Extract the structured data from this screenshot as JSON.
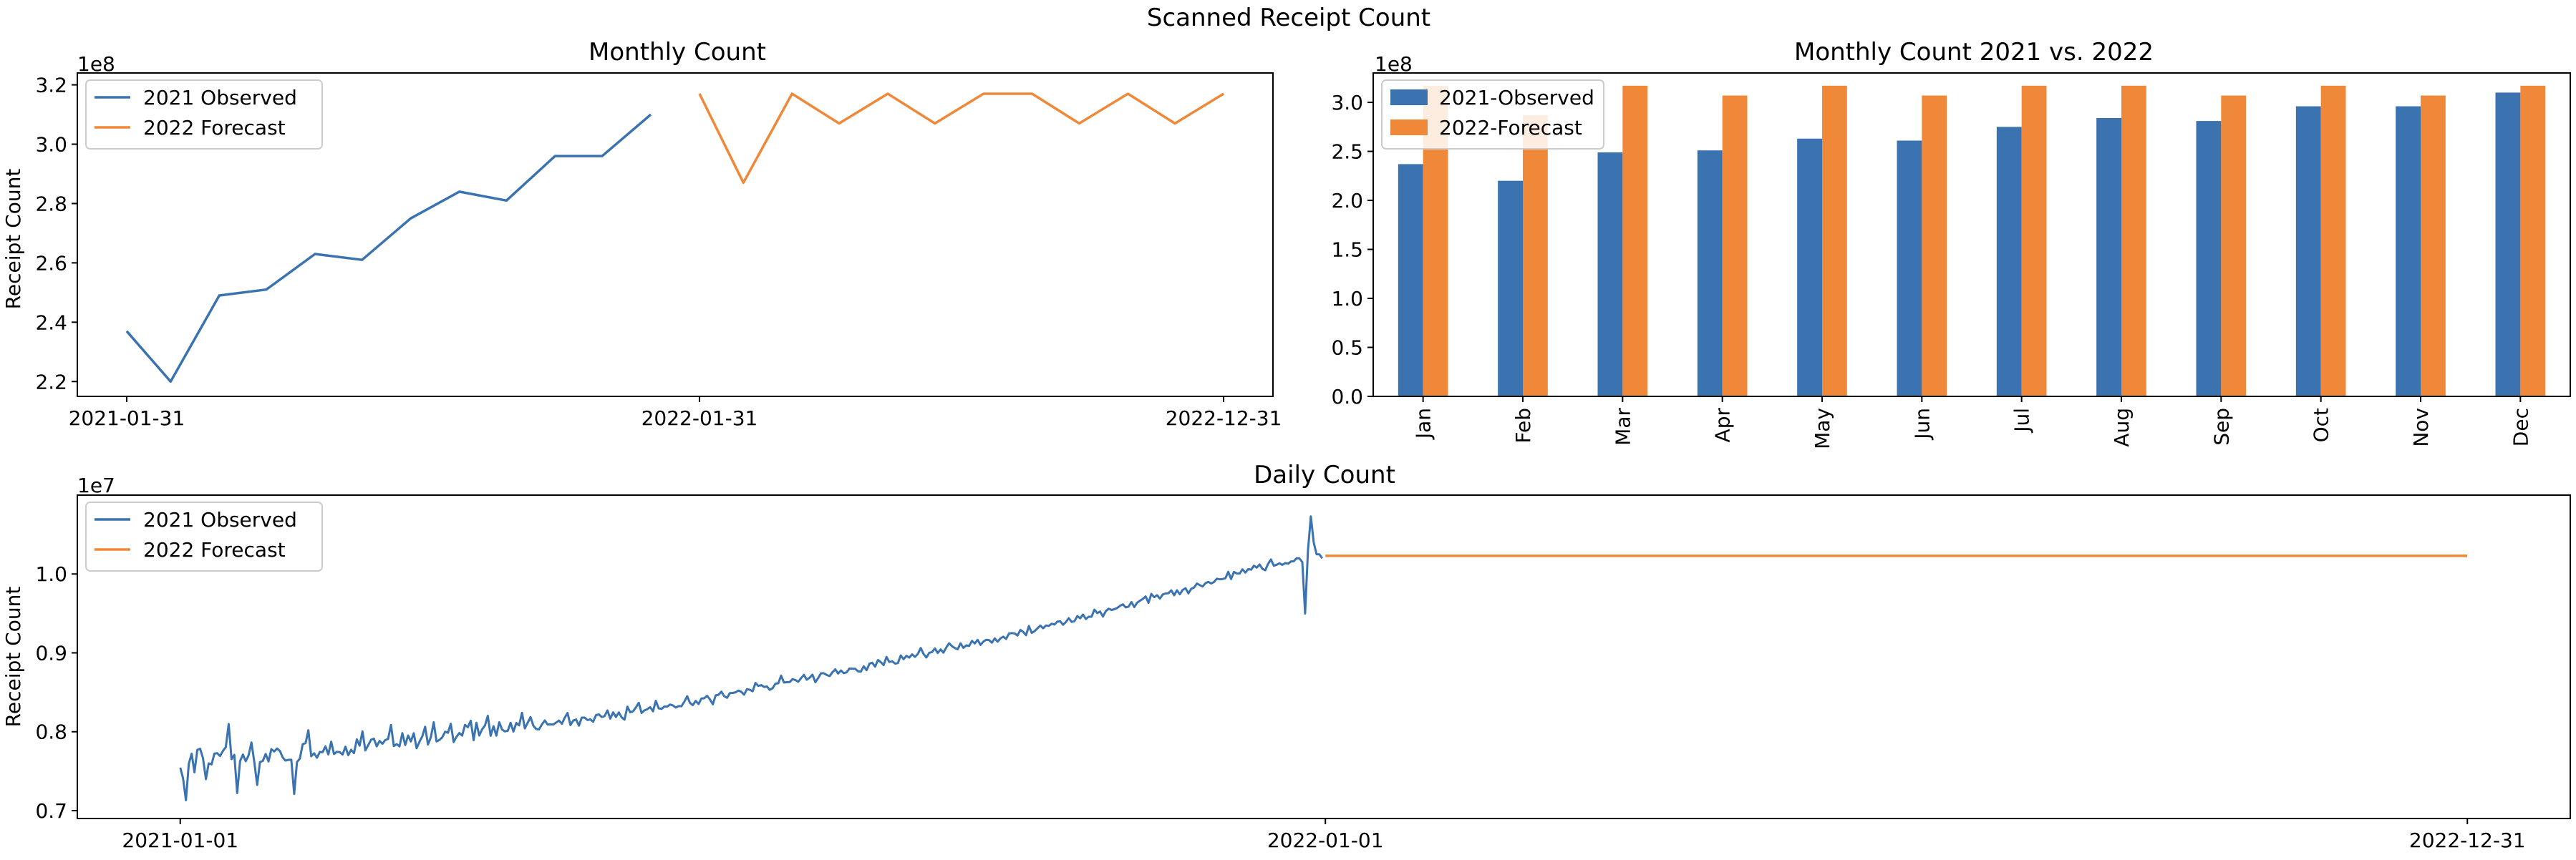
{
  "figure": {
    "title": "Scanned Receipt Count"
  },
  "colors": {
    "observed": "#3a73b0",
    "forecast": "#f0883a"
  },
  "chart_data": [
    {
      "id": "monthly",
      "type": "line",
      "title": "Monthly Count",
      "ylabel": "Receipt Count",
      "exponent_label": "1e8",
      "ylim": [
        2.15,
        3.24
      ],
      "yticks": [
        2.2,
        2.4,
        2.6,
        2.8,
        3.0,
        3.2
      ],
      "xticks": [
        "2021-01-31",
        "2022-01-31",
        "2022-12-31"
      ],
      "legend": "top-left",
      "series": [
        {
          "name": "2021 Observed",
          "x": [
            "2021-01-31",
            "2021-02-28",
            "2021-03-31",
            "2021-04-30",
            "2021-05-31",
            "2021-06-30",
            "2021-07-31",
            "2021-08-31",
            "2021-09-30",
            "2021-10-31",
            "2021-11-30",
            "2021-12-31"
          ],
          "y": [
            2.37,
            2.2,
            2.49,
            2.51,
            2.63,
            2.61,
            2.75,
            2.84,
            2.81,
            2.96,
            2.96,
            3.1
          ]
        },
        {
          "name": "2022 Forecast",
          "x": [
            "2022-01-31",
            "2022-02-28",
            "2022-03-31",
            "2022-04-30",
            "2022-05-31",
            "2022-06-30",
            "2022-07-31",
            "2022-08-31",
            "2022-09-30",
            "2022-10-31",
            "2022-11-30",
            "2022-12-31"
          ],
          "y": [
            3.17,
            2.87,
            3.17,
            3.07,
            3.17,
            3.07,
            3.17,
            3.17,
            3.07,
            3.17,
            3.07,
            3.17
          ]
        }
      ]
    },
    {
      "id": "compare",
      "type": "bar",
      "title": "Monthly Count 2021 vs. 2022",
      "exponent_label": "1e8",
      "ylim": [
        0,
        3.3
      ],
      "yticks": [
        0.0,
        0.5,
        1.0,
        1.5,
        2.0,
        2.5,
        3.0
      ],
      "categories": [
        "Jan",
        "Feb",
        "Mar",
        "Apr",
        "May",
        "Jun",
        "Jul",
        "Aug",
        "Sep",
        "Oct",
        "Nov",
        "Dec"
      ],
      "legend": "top-left",
      "series": [
        {
          "name": "2021-Observed",
          "values": [
            2.37,
            2.2,
            2.49,
            2.51,
            2.63,
            2.61,
            2.75,
            2.84,
            2.81,
            2.96,
            2.96,
            3.1
          ]
        },
        {
          "name": "2022-Forecast",
          "values": [
            3.17,
            2.87,
            3.17,
            3.07,
            3.17,
            3.07,
            3.17,
            3.17,
            3.07,
            3.17,
            3.07,
            3.17
          ]
        }
      ]
    },
    {
      "id": "daily",
      "type": "line",
      "title": "Daily Count",
      "ylabel": "Receipt Count",
      "exponent_label": "1e7",
      "ylim": [
        0.69,
        1.1
      ],
      "yticks": [
        0.7,
        0.8,
        0.9,
        1.0
      ],
      "xticks": [
        "2021-01-01",
        "2022-01-01",
        "2022-12-31"
      ],
      "legend": "top-left",
      "series": [
        {
          "name": "2021 Observed",
          "x_start": "2021-01-01",
          "x_end": "2021-12-31",
          "y": [
            0.7545,
            0.7409,
            0.7131,
            0.7594,
            0.7722,
            0.7486,
            0.777,
            0.7784,
            0.766,
            0.7399,
            0.7599,
            0.7586,
            0.7723,
            0.7727,
            0.7692,
            0.7757,
            0.7805,
            0.8098,
            0.7653,
            0.7706,
            0.7222,
            0.7628,
            0.7711,
            0.7627,
            0.77,
            0.7864,
            0.7617,
            0.7325,
            0.7616,
            0.763,
            0.7718,
            0.7623,
            0.778,
            0.7749,
            0.7787,
            0.7756,
            0.7674,
            0.7634,
            0.7644,
            0.7645,
            0.7211,
            0.7616,
            0.7659,
            0.7842,
            0.7856,
            0.8019,
            0.7689,
            0.7727,
            0.767,
            0.7744,
            0.7741,
            0.7815,
            0.7712,
            0.7874,
            0.7717,
            0.7745,
            0.7741,
            0.7711,
            0.7811,
            0.7703,
            0.7773,
            0.7728,
            0.7903,
            0.7823,
            0.8005,
            0.7763,
            0.783,
            0.7899,
            0.7912,
            0.7814,
            0.7883,
            0.7847,
            0.7894,
            0.791,
            0.8086,
            0.7818,
            0.7843,
            0.7814,
            0.7982,
            0.7832,
            0.7952,
            0.7877,
            0.7981,
            0.7791,
            0.7873,
            0.7942,
            0.8063,
            0.7838,
            0.7931,
            0.812,
            0.7877,
            0.7895,
            0.7929,
            0.8,
            0.7987,
            0.8102,
            0.787,
            0.7936,
            0.7984,
            0.7951,
            0.8087,
            0.8057,
            0.814,
            0.7893,
            0.8114,
            0.7952,
            0.8031,
            0.8079,
            0.8202,
            0.7949,
            0.8071,
            0.795,
            0.812,
            0.8029,
            0.8004,
            0.8012,
            0.8113,
            0.8002,
            0.811,
            0.8081,
            0.824,
            0.8042,
            0.8113,
            0.8186,
            0.8076,
            0.8034,
            0.803,
            0.8093,
            0.8143,
            0.8092,
            0.8094,
            0.8092,
            0.8116,
            0.8142,
            0.8101,
            0.8176,
            0.8238,
            0.8085,
            0.8141,
            0.8155,
            0.8077,
            0.8179,
            0.8179,
            0.8148,
            0.8157,
            0.8126,
            0.8211,
            0.822,
            0.8186,
            0.8197,
            0.8271,
            0.8166,
            0.8246,
            0.8186,
            0.8245,
            0.8183,
            0.8154,
            0.8318,
            0.8246,
            0.8259,
            0.8309,
            0.8367,
            0.8238,
            0.8271,
            0.8286,
            0.8312,
            0.8259,
            0.8392,
            0.8297,
            0.829,
            0.832,
            0.8319,
            0.8345,
            0.8334,
            0.8307,
            0.8325,
            0.8323,
            0.838,
            0.845,
            0.8364,
            0.8338,
            0.8391,
            0.8351,
            0.8421,
            0.8424,
            0.8456,
            0.841,
            0.8348,
            0.8461,
            0.8468,
            0.8508,
            0.8451,
            0.843,
            0.849,
            0.8492,
            0.85,
            0.8523,
            0.8506,
            0.847,
            0.8539,
            0.8533,
            0.8513,
            0.8619,
            0.8581,
            0.8592,
            0.8568,
            0.8574,
            0.8531,
            0.8552,
            0.861,
            0.8614,
            0.8711,
            0.8624,
            0.8628,
            0.863,
            0.8667,
            0.8655,
            0.8633,
            0.868,
            0.8721,
            0.866,
            0.8684,
            0.8723,
            0.8628,
            0.8681,
            0.8741,
            0.8741,
            0.872,
            0.8705,
            0.8753,
            0.8791,
            0.8738,
            0.8777,
            0.8742,
            0.8753,
            0.8801,
            0.8799,
            0.8798,
            0.8767,
            0.8762,
            0.883,
            0.878,
            0.8863,
            0.8875,
            0.8825,
            0.8909,
            0.8882,
            0.8845,
            0.8948,
            0.8885,
            0.8893,
            0.8864,
            0.887,
            0.8967,
            0.892,
            0.8963,
            0.894,
            0.8981,
            0.895,
            0.8986,
            0.9062,
            0.8987,
            0.8941,
            0.9001,
            0.9011,
            0.9056,
            0.8998,
            0.9043,
            0.9003,
            0.907,
            0.9121,
            0.9084,
            0.9061,
            0.9046,
            0.9121,
            0.9063,
            0.9095,
            0.9087,
            0.9152,
            0.912,
            0.9165,
            0.9101,
            0.9142,
            0.9166,
            0.9162,
            0.9129,
            0.9184,
            0.9141,
            0.9182,
            0.9205,
            0.9177,
            0.9245,
            0.9251,
            0.9246,
            0.9219,
            0.9291,
            0.9266,
            0.9224,
            0.9341,
            0.9253,
            0.9276,
            0.931,
            0.9346,
            0.9312,
            0.9347,
            0.9342,
            0.937,
            0.9359,
            0.9397,
            0.94,
            0.9356,
            0.9391,
            0.944,
            0.9393,
            0.9401,
            0.9466,
            0.9438,
            0.9486,
            0.9429,
            0.9458,
            0.9458,
            0.9549,
            0.9503,
            0.9524,
            0.946,
            0.9529,
            0.956,
            0.9544,
            0.9553,
            0.9569,
            0.9597,
            0.9615,
            0.9577,
            0.9586,
            0.9645,
            0.958,
            0.9637,
            0.9661,
            0.9684,
            0.9716,
            0.9634,
            0.9747,
            0.9706,
            0.9731,
            0.9688,
            0.9741,
            0.9753,
            0.9756,
            0.9793,
            0.973,
            0.9794,
            0.9742,
            0.9798,
            0.982,
            0.9754,
            0.9812,
            0.9829,
            0.9879,
            0.9859,
            0.9841,
            0.9883,
            0.99,
            0.988,
            0.9899,
            0.994,
            0.9932,
            0.9937,
            0.9946,
            1.0028,
            0.9936,
            1.0026,
            1.0007,
            1.0006,
            1.0059,
            1.0018,
            1.0061,
            1.0055,
            1.0105,
            1.008,
            1.012,
            1.0065,
            1.0048,
            1.0129,
            1.0184,
            1.0105,
            1.0117,
            1.0136,
            1.0116,
            1.0138,
            1.013,
            1.0158,
            1.0161,
            1.02,
            1.0197,
            1.015,
            0.95,
            1.03,
            1.073,
            1.04,
            1.025,
            1.025,
            1.02
          ]
        },
        {
          "name": "2022 Forecast",
          "x": [
            "2022-01-01",
            "2022-12-31"
          ],
          "y": [
            1.023,
            1.023
          ]
        }
      ]
    }
  ]
}
